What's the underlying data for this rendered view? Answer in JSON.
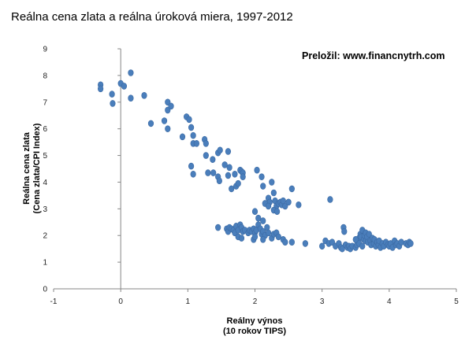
{
  "chart_data": {
    "type": "scatter",
    "title": "Reálna cena zlata a reálna úroková miera, 1997-2012",
    "annotation": "Preložil: www.financnytrh.com",
    "xlabel": [
      "Reálny výnos",
      "(10 rokov TIPS)"
    ],
    "ylabel": [
      "Reálna cena zlata",
      "(Cena zlata/CPI Index)"
    ],
    "xlim": [
      -1,
      5
    ],
    "ylim": [
      0,
      9
    ],
    "xticks": [
      "-1",
      "0",
      "1",
      "2",
      "3",
      "4",
      "5"
    ],
    "yticks": [
      "0",
      "1",
      "2",
      "3",
      "4",
      "5",
      "6",
      "7",
      "8",
      "9"
    ],
    "grid": false,
    "legend": "none",
    "marker_color": "#4a7ebb",
    "points": [
      [
        -0.3,
        7.65
      ],
      [
        -0.3,
        7.5
      ],
      [
        -0.13,
        7.3
      ],
      [
        -0.12,
        6.95
      ],
      [
        0.0,
        7.7
      ],
      [
        0.05,
        7.6
      ],
      [
        0.15,
        8.1
      ],
      [
        0.15,
        7.15
      ],
      [
        0.35,
        7.25
      ],
      [
        0.45,
        6.2
      ],
      [
        0.65,
        6.3
      ],
      [
        0.7,
        7.0
      ],
      [
        0.7,
        6.7
      ],
      [
        0.75,
        6.85
      ],
      [
        0.7,
        6.0
      ],
      [
        0.92,
        5.7
      ],
      [
        0.98,
        6.45
      ],
      [
        1.02,
        6.35
      ],
      [
        1.05,
        6.05
      ],
      [
        1.08,
        5.75
      ],
      [
        1.08,
        5.45
      ],
      [
        1.13,
        5.45
      ],
      [
        1.05,
        4.6
      ],
      [
        1.08,
        4.3
      ],
      [
        1.25,
        5.6
      ],
      [
        1.27,
        5.45
      ],
      [
        1.27,
        5.0
      ],
      [
        1.3,
        4.35
      ],
      [
        1.38,
        4.35
      ],
      [
        1.37,
        4.85
      ],
      [
        1.45,
        5.1
      ],
      [
        1.48,
        5.2
      ],
      [
        1.45,
        4.2
      ],
      [
        1.47,
        4.05
      ],
      [
        1.55,
        4.65
      ],
      [
        1.6,
        5.15
      ],
      [
        1.62,
        4.55
      ],
      [
        1.6,
        4.25
      ],
      [
        1.65,
        3.75
      ],
      [
        1.7,
        4.3
      ],
      [
        1.72,
        3.85
      ],
      [
        1.75,
        3.95
      ],
      [
        1.78,
        4.45
      ],
      [
        1.8,
        4.4
      ],
      [
        1.82,
        4.35
      ],
      [
        1.82,
        4.2
      ],
      [
        2.03,
        4.45
      ],
      [
        2.1,
        4.2
      ],
      [
        2.12,
        3.85
      ],
      [
        2.2,
        3.4
      ],
      [
        2.22,
        3.25
      ],
      [
        2.25,
        4.0
      ],
      [
        2.28,
        3.6
      ],
      [
        2.15,
        3.2
      ],
      [
        2.2,
        3.1
      ],
      [
        2.3,
        3.3
      ],
      [
        2.32,
        3.1
      ],
      [
        2.35,
        3.2
      ],
      [
        2.38,
        3.25
      ],
      [
        2.4,
        3.15
      ],
      [
        2.42,
        3.3
      ],
      [
        2.45,
        3.1
      ],
      [
        2.5,
        3.25
      ],
      [
        2.55,
        3.75
      ],
      [
        2.65,
        3.15
      ],
      [
        2.28,
        2.95
      ],
      [
        2.33,
        2.9
      ],
      [
        2.05,
        2.65
      ],
      [
        2.12,
        2.55
      ],
      [
        2.0,
        2.9
      ],
      [
        1.45,
        2.3
      ],
      [
        1.58,
        2.25
      ],
      [
        1.6,
        2.15
      ],
      [
        1.62,
        2.3
      ],
      [
        1.65,
        2.25
      ],
      [
        1.68,
        2.2
      ],
      [
        1.7,
        2.1
      ],
      [
        1.72,
        2.35
      ],
      [
        1.75,
        2.2
      ],
      [
        1.78,
        2.4
      ],
      [
        1.8,
        2.3
      ],
      [
        1.82,
        2.15
      ],
      [
        1.85,
        2.2
      ],
      [
        1.9,
        2.1
      ],
      [
        1.92,
        2.2
      ],
      [
        1.95,
        2.15
      ],
      [
        1.98,
        2.25
      ],
      [
        2.0,
        2.1
      ],
      [
        2.02,
        2.2
      ],
      [
        2.05,
        2.4
      ],
      [
        2.08,
        2.25
      ],
      [
        2.1,
        2.05
      ],
      [
        2.12,
        2.15
      ],
      [
        2.15,
        2.0
      ],
      [
        2.18,
        2.3
      ],
      [
        2.2,
        2.1
      ],
      [
        2.25,
        1.9
      ],
      [
        2.28,
        2.05
      ],
      [
        2.32,
        2.1
      ],
      [
        2.35,
        1.95
      ],
      [
        2.42,
        1.85
      ],
      [
        2.45,
        1.75
      ],
      [
        2.55,
        1.75
      ],
      [
        2.75,
        1.7
      ],
      [
        1.75,
        1.95
      ],
      [
        1.8,
        1.9
      ],
      [
        1.98,
        1.85
      ],
      [
        2.0,
        1.95
      ],
      [
        2.12,
        1.85
      ],
      [
        3.0,
        1.6
      ],
      [
        3.05,
        1.8
      ],
      [
        3.1,
        1.7
      ],
      [
        3.15,
        1.75
      ],
      [
        3.12,
        3.35
      ],
      [
        3.2,
        1.6
      ],
      [
        3.25,
        1.7
      ],
      [
        3.28,
        1.55
      ],
      [
        3.3,
        1.5
      ],
      [
        3.32,
        2.3
      ],
      [
        3.33,
        2.15
      ],
      [
        3.35,
        1.65
      ],
      [
        3.38,
        1.55
      ],
      [
        3.4,
        1.6
      ],
      [
        3.42,
        1.5
      ],
      [
        3.45,
        1.6
      ],
      [
        3.5,
        1.55
      ],
      [
        3.52,
        1.65
      ],
      [
        3.55,
        1.9
      ],
      [
        3.57,
        2.05
      ],
      [
        3.58,
        1.95
      ],
      [
        3.6,
        2.2
      ],
      [
        3.62,
        1.85
      ],
      [
        3.63,
        2.0
      ],
      [
        3.65,
        1.8
      ],
      [
        3.65,
        2.1
      ],
      [
        3.67,
        1.95
      ],
      [
        3.68,
        1.75
      ],
      [
        3.7,
        2.05
      ],
      [
        3.72,
        1.8
      ],
      [
        3.73,
        1.65
      ],
      [
        3.75,
        1.9
      ],
      [
        3.77,
        1.7
      ],
      [
        3.78,
        1.85
      ],
      [
        3.8,
        1.6
      ],
      [
        3.82,
        1.75
      ],
      [
        3.84,
        1.65
      ],
      [
        3.85,
        1.8
      ],
      [
        3.87,
        1.55
      ],
      [
        3.9,
        1.7
      ],
      [
        3.92,
        1.6
      ],
      [
        3.95,
        1.75
      ],
      [
        3.98,
        1.65
      ],
      [
        4.0,
        1.6
      ],
      [
        4.02,
        1.7
      ],
      [
        4.05,
        1.55
      ],
      [
        4.08,
        1.8
      ],
      [
        4.1,
        1.65
      ],
      [
        4.12,
        1.7
      ],
      [
        4.15,
        1.6
      ],
      [
        4.18,
        1.75
      ],
      [
        4.25,
        1.7
      ],
      [
        4.28,
        1.65
      ],
      [
        4.3,
        1.75
      ],
      [
        4.32,
        1.7
      ],
      [
        3.55,
        1.7
      ],
      [
        3.6,
        1.6
      ],
      [
        3.5,
        1.85
      ]
    ]
  }
}
